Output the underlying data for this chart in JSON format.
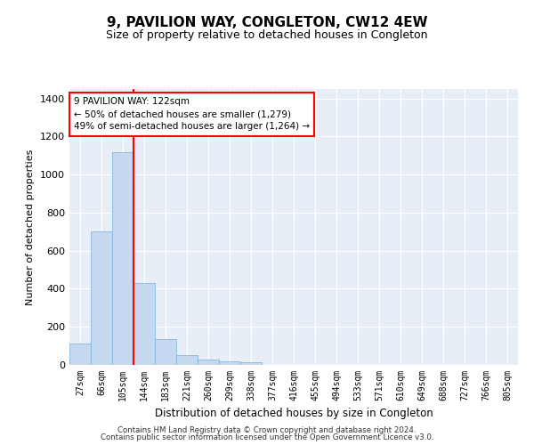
{
  "title": "9, PAVILION WAY, CONGLETON, CW12 4EW",
  "subtitle": "Size of property relative to detached houses in Congleton",
  "xlabel": "Distribution of detached houses by size in Congleton",
  "ylabel": "Number of detached properties",
  "bar_color": "#c5d8f0",
  "bar_edge_color": "#7aafd4",
  "background_color": "#e8eef8",
  "grid_color": "#ffffff",
  "categories": [
    "27sqm",
    "66sqm",
    "105sqm",
    "144sqm",
    "183sqm",
    "221sqm",
    "260sqm",
    "299sqm",
    "338sqm",
    "377sqm",
    "416sqm",
    "455sqm",
    "494sqm",
    "533sqm",
    "571sqm",
    "610sqm",
    "649sqm",
    "688sqm",
    "727sqm",
    "766sqm",
    "805sqm"
  ],
  "values": [
    110,
    700,
    1120,
    430,
    135,
    52,
    30,
    18,
    12,
    0,
    0,
    0,
    0,
    0,
    0,
    0,
    0,
    0,
    0,
    0,
    0
  ],
  "ylim": [
    0,
    1450
  ],
  "property_bin_index": 2,
  "annotation_line1": "9 PAVILION WAY: 122sqm",
  "annotation_line2": "← 50% of detached houses are smaller (1,279)",
  "annotation_line3": "49% of semi-detached houses are larger (1,264) →",
  "footnote1": "Contains HM Land Registry data © Crown copyright and database right 2024.",
  "footnote2": "Contains public sector information licensed under the Open Government Licence v3.0."
}
